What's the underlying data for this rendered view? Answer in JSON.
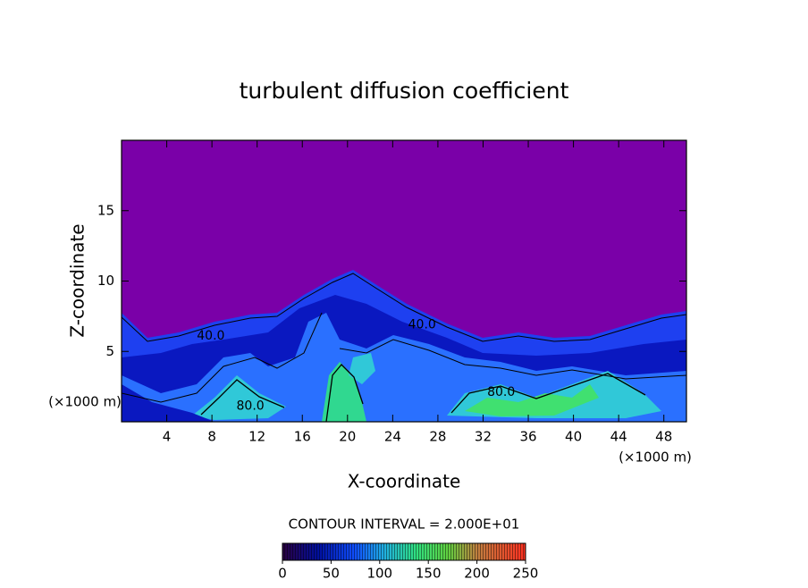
{
  "chart_data": {
    "type": "heatmap",
    "title": "turbulent diffusion coefficient",
    "x_label": "X-coordinate",
    "y_label": "Z-coordinate",
    "x_unit": "(×1000 m)",
    "xlim": [
      0,
      50
    ],
    "xticks": [
      4,
      8,
      12,
      16,
      20,
      24,
      28,
      32,
      36,
      40,
      44,
      48
    ],
    "ylim": [
      0,
      20
    ],
    "yticks": [
      5,
      10,
      15
    ],
    "contour_labels": [
      {
        "label": "40.0",
        "x": 7.9,
        "z": 6.1
      },
      {
        "label": "40.0",
        "x": 26.6,
        "z": 6.9
      },
      {
        "label": "80.0",
        "x": 11.4,
        "z": 1.1
      },
      {
        "label": "80.0",
        "x": 33.6,
        "z": 2.1
      }
    ],
    "colorbar": {
      "label": "CONTOUR INTERVAL = 2.000E+01",
      "lim": [
        0,
        250
      ],
      "ticks": [
        0,
        50,
        100,
        150,
        200,
        250
      ]
    }
  }
}
